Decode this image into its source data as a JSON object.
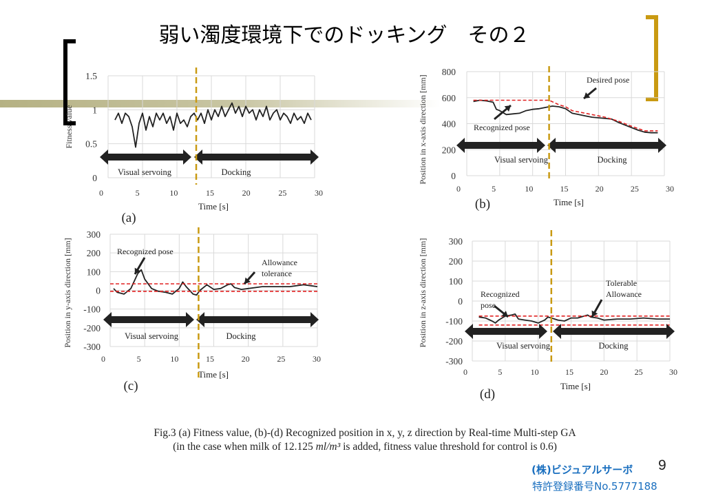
{
  "title": "弱い濁度環境下でのドッキング　その２",
  "colors": {
    "trace": "#222222",
    "desired": "#e02020",
    "switch_line": "#c99a12",
    "arrow": "#222222",
    "grid": "#d9d9d9",
    "bracket_left": "#000000",
    "bracket_right": "#c99a12",
    "company": "#1a6fbf"
  },
  "caption": {
    "line1": "Fig.3 (a) Fitness value,  (b)-(d) Recognized position in x, y, z direction by Real-time  Multi-step  GA",
    "line2_pre": "(in the case when milk  of 12.125 ",
    "line2_unit": "ml/m³",
    "line2_post": " is added, fitness value threshold for control is 0.6)"
  },
  "footer": {
    "company": "(株)ビジュアルサーボ",
    "patent": "特許登録番号No.5777188",
    "page_number": "9"
  },
  "chart_data": [
    {
      "panel": "(a)",
      "type": "line",
      "xlabel": "Time  [s]",
      "ylabel": "Fitness value",
      "xlim": [
        0,
        30
      ],
      "ylim": [
        0,
        1.5
      ],
      "x_ticks": [
        "0",
        "5",
        "10",
        "15",
        "20",
        "25",
        "30"
      ],
      "y_ticks": [
        "0",
        "0.5",
        "1",
        "1.5"
      ],
      "grid": true,
      "switch_time": 12.8,
      "phases": [
        "Visual  servoing",
        "Docking"
      ],
      "annotations": [],
      "series": [
        {
          "style": "solid",
          "x": [
            1,
            1.5,
            2,
            2.5,
            3,
            3.5,
            4,
            4.5,
            5,
            5.5,
            6,
            6.5,
            7,
            7.5,
            8,
            8.5,
            9,
            9.5,
            10,
            10.5,
            11,
            11.5,
            12,
            12.5,
            13,
            13.5,
            14,
            14.5,
            15,
            15.5,
            16,
            16.5,
            17,
            17.5,
            18,
            18.5,
            19,
            19.5,
            20,
            20.5,
            21,
            21.5,
            22,
            22.5,
            23,
            23.5,
            24,
            24.5,
            25,
            25.5,
            26,
            26.5,
            27,
            27.5,
            28,
            28.5,
            29,
            29.5
          ],
          "y": [
            0.85,
            0.95,
            0.8,
            0.95,
            0.9,
            0.75,
            0.45,
            0.8,
            0.95,
            0.7,
            0.9,
            0.75,
            0.95,
            0.85,
            0.95,
            0.8,
            0.9,
            0.7,
            0.95,
            0.8,
            0.85,
            0.75,
            0.9,
            0.95,
            0.85,
            0.95,
            0.8,
            1.0,
            0.85,
            1.0,
            0.9,
            1.05,
            0.9,
            1.0,
            1.1,
            0.95,
            1.05,
            0.9,
            1.05,
            0.95,
            1.0,
            0.85,
            1.0,
            0.9,
            1.05,
            0.85,
            0.95,
            1.0,
            0.85,
            0.95,
            0.9,
            0.8,
            0.95,
            0.85,
            0.9,
            0.8,
            0.95,
            0.85
          ]
        }
      ]
    },
    {
      "panel": "(b)",
      "type": "line",
      "xlabel": "Time  [s]",
      "ylabel": "Position in  x-axis direction [mm]",
      "xlim": [
        0,
        30
      ],
      "ylim": [
        0,
        800
      ],
      "x_ticks": [
        "0",
        "5",
        "10",
        "15",
        "20",
        "25",
        "30"
      ],
      "y_ticks": [
        "0",
        "200",
        "400",
        "600",
        "800"
      ],
      "grid": true,
      "switch_time": 12.5,
      "phases": [
        "Visual  servoing",
        "Docking"
      ],
      "annotations": [
        "Desired pose",
        "Recognized pose"
      ],
      "series": [
        {
          "style": "solid",
          "x": [
            1,
            2,
            3,
            4,
            4.5,
            5,
            6,
            7,
            8,
            9,
            10,
            11,
            12,
            13,
            14,
            15,
            16,
            17,
            18,
            19,
            20,
            21,
            22,
            23,
            24,
            25,
            26,
            27,
            28,
            29
          ],
          "y": [
            570,
            580,
            575,
            565,
            510,
            500,
            470,
            475,
            480,
            500,
            510,
            515,
            525,
            535,
            530,
            515,
            480,
            470,
            460,
            450,
            445,
            440,
            435,
            410,
            390,
            370,
            350,
            335,
            330,
            330
          ]
        },
        {
          "style": "dashed",
          "x": [
            1,
            12.5,
            14,
            15,
            16,
            17,
            19,
            21,
            23,
            25,
            27,
            29
          ],
          "y": [
            580,
            580,
            545,
            530,
            500,
            490,
            470,
            450,
            420,
            380,
            345,
            345
          ]
        }
      ]
    },
    {
      "panel": "(c)",
      "type": "line",
      "xlabel": "Time  [s]",
      "ylabel": "Position in  y-axis direction [mm]",
      "xlim": [
        0,
        30
      ],
      "ylim": [
        -300,
        300
      ],
      "x_ticks": [
        "0",
        "5",
        "10",
        "15",
        "20",
        "25",
        "30"
      ],
      "y_ticks": [
        "-300",
        "-200",
        "-100",
        "0",
        "100",
        "200",
        "300"
      ],
      "grid": true,
      "switch_time": 12.8,
      "phases": [
        "Visual  servoing",
        "Docking"
      ],
      "annotations": [
        "Recognized pose",
        "Allowance",
        "tolerance"
      ],
      "series": [
        {
          "style": "solid",
          "x": [
            0.5,
            1,
            2,
            3,
            4,
            4.5,
            5,
            6,
            7,
            8,
            9,
            10,
            10.5,
            11,
            12,
            12.5,
            13,
            14,
            15,
            16,
            17,
            17.5,
            18,
            19,
            20,
            22,
            24,
            26,
            27,
            28,
            29,
            30
          ],
          "y": [
            10,
            -10,
            -20,
            10,
            90,
            110,
            60,
            10,
            -5,
            -10,
            -20,
            10,
            45,
            20,
            -20,
            -25,
            0,
            30,
            5,
            10,
            30,
            35,
            15,
            5,
            10,
            20,
            20,
            20,
            25,
            30,
            25,
            20
          ]
        },
        {
          "style": "dashed",
          "x": [
            0,
            30
          ],
          "y": [
            35,
            35
          ]
        },
        {
          "style": "dashed",
          "x": [
            0,
            30
          ],
          "y": [
            -5,
            -5
          ]
        }
      ]
    },
    {
      "panel": "(d)",
      "type": "line",
      "xlabel": "Time  [s]",
      "ylabel": "Position in  z-axis direction [mm]",
      "xlim": [
        0,
        30
      ],
      "ylim": [
        -300,
        300
      ],
      "x_ticks": [
        "0",
        "5",
        "10",
        "15",
        "20",
        "25",
        "30"
      ],
      "y_ticks": [
        "-300",
        "-200",
        "-100",
        "0",
        "100",
        "200",
        "300"
      ],
      "grid": true,
      "switch_time": 12,
      "phases": [
        "Visual  servoing",
        "Docking"
      ],
      "annotations": [
        "Recognized",
        "pose",
        "Tolerable",
        "Allowance"
      ],
      "series": [
        {
          "style": "solid",
          "x": [
            1,
            2,
            3,
            3.5,
            4,
            5,
            6,
            6.5,
            7,
            8,
            9,
            10,
            11,
            11.5,
            12,
            13,
            14,
            15,
            16,
            17,
            17.5,
            18,
            19,
            20,
            22,
            24,
            26,
            28,
            30
          ],
          "y": [
            -80,
            -85,
            -100,
            -110,
            -95,
            -75,
            -70,
            -65,
            -90,
            -95,
            -100,
            -110,
            -95,
            -80,
            -85,
            -95,
            -100,
            -85,
            -85,
            -75,
            -70,
            -80,
            -85,
            -95,
            -90,
            -90,
            -85,
            -90,
            -90
          ]
        },
        {
          "style": "dashed",
          "x": [
            1,
            30
          ],
          "y": [
            -75,
            -75
          ]
        },
        {
          "style": "dashed",
          "x": [
            1,
            30
          ],
          "y": [
            -120,
            -120
          ]
        }
      ]
    }
  ]
}
